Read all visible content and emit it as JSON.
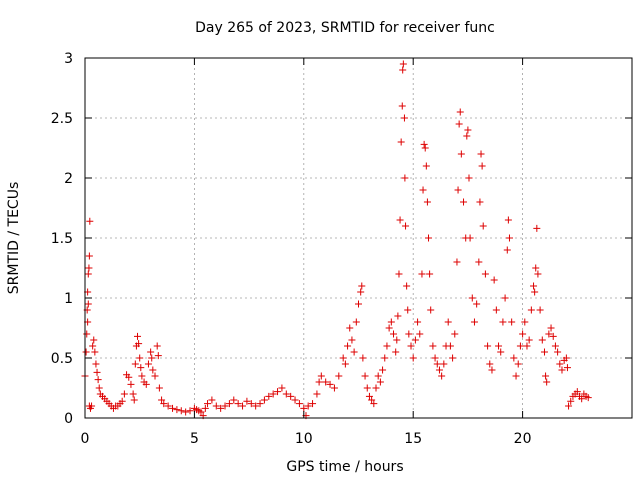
{
  "chart_data": {
    "type": "scatter",
    "title": "Day 265 of 2023, SRMTID for receiver func",
    "xlabel": "GPS time / hours",
    "ylabel": "SRMTID / TECUs",
    "xlim": [
      0,
      25
    ],
    "ylim": [
      0,
      3
    ],
    "xticks": [
      0,
      5,
      10,
      15,
      20
    ],
    "xtick_labels": [
      "0",
      "5",
      "10",
      "15",
      "20"
    ],
    "yticks": [
      0,
      0.5,
      1,
      1.5,
      2,
      2.5,
      3
    ],
    "ytick_labels": [
      "0",
      "0.5",
      "1",
      "1.5",
      "2",
      "2.5",
      "3"
    ],
    "grid": true,
    "marker": "+",
    "series": [
      {
        "name": "SRMTID",
        "color": "#dd0000",
        "points": [
          [
            0.0,
            0.35
          ],
          [
            0.05,
            0.55
          ],
          [
            0.08,
            0.7
          ],
          [
            0.1,
            0.9
          ],
          [
            0.12,
            1.05
          ],
          [
            0.15,
            1.2
          ],
          [
            0.18,
            1.25
          ],
          [
            0.2,
            1.35
          ],
          [
            0.22,
            1.64
          ],
          [
            0.15,
            0.95
          ],
          [
            0.12,
            0.8
          ],
          [
            0.2,
            0.1
          ],
          [
            0.25,
            0.08
          ],
          [
            0.3,
            0.1
          ],
          [
            0.35,
            0.6
          ],
          [
            0.4,
            0.65
          ],
          [
            0.45,
            0.55
          ],
          [
            0.5,
            0.45
          ],
          [
            0.55,
            0.38
          ],
          [
            0.6,
            0.32
          ],
          [
            0.65,
            0.25
          ],
          [
            0.7,
            0.2
          ],
          [
            0.8,
            0.18
          ],
          [
            0.9,
            0.16
          ],
          [
            1.0,
            0.14
          ],
          [
            1.1,
            0.12
          ],
          [
            1.2,
            0.1
          ],
          [
            1.3,
            0.08
          ],
          [
            1.4,
            0.1
          ],
          [
            1.5,
            0.1
          ],
          [
            1.6,
            0.12
          ],
          [
            1.7,
            0.14
          ],
          [
            1.8,
            0.2
          ],
          [
            1.9,
            0.36
          ],
          [
            2.0,
            0.34
          ],
          [
            2.1,
            0.28
          ],
          [
            2.2,
            0.2
          ],
          [
            2.25,
            0.15
          ],
          [
            2.3,
            0.45
          ],
          [
            2.35,
            0.6
          ],
          [
            2.4,
            0.68
          ],
          [
            2.45,
            0.62
          ],
          [
            2.5,
            0.5
          ],
          [
            2.55,
            0.42
          ],
          [
            2.6,
            0.35
          ],
          [
            2.7,
            0.3
          ],
          [
            2.8,
            0.28
          ],
          [
            2.9,
            0.45
          ],
          [
            3.0,
            0.55
          ],
          [
            3.05,
            0.5
          ],
          [
            3.1,
            0.4
          ],
          [
            3.2,
            0.35
          ],
          [
            3.3,
            0.6
          ],
          [
            3.35,
            0.52
          ],
          [
            3.4,
            0.25
          ],
          [
            3.5,
            0.15
          ],
          [
            3.6,
            0.12
          ],
          [
            3.8,
            0.1
          ],
          [
            4.0,
            0.08
          ],
          [
            4.2,
            0.07
          ],
          [
            4.4,
            0.06
          ],
          [
            4.6,
            0.05
          ],
          [
            4.8,
            0.06
          ],
          [
            5.0,
            0.08
          ],
          [
            5.1,
            0.07
          ],
          [
            5.2,
            0.06
          ],
          [
            5.3,
            0.05
          ],
          [
            5.4,
            0.02
          ],
          [
            5.5,
            0.08
          ],
          [
            5.6,
            0.12
          ],
          [
            5.8,
            0.15
          ],
          [
            6.0,
            0.1
          ],
          [
            6.2,
            0.08
          ],
          [
            6.4,
            0.1
          ],
          [
            6.6,
            0.12
          ],
          [
            6.8,
            0.15
          ],
          [
            7.0,
            0.12
          ],
          [
            7.2,
            0.1
          ],
          [
            7.4,
            0.14
          ],
          [
            7.6,
            0.12
          ],
          [
            7.8,
            0.1
          ],
          [
            8.0,
            0.12
          ],
          [
            8.2,
            0.15
          ],
          [
            8.4,
            0.18
          ],
          [
            8.6,
            0.2
          ],
          [
            8.8,
            0.22
          ],
          [
            9.0,
            0.25
          ],
          [
            9.2,
            0.2
          ],
          [
            9.4,
            0.18
          ],
          [
            9.6,
            0.15
          ],
          [
            9.8,
            0.12
          ],
          [
            10.0,
            0.08
          ],
          [
            10.1,
            0.02
          ],
          [
            10.2,
            0.1
          ],
          [
            10.4,
            0.12
          ],
          [
            10.6,
            0.2
          ],
          [
            10.7,
            0.3
          ],
          [
            10.8,
            0.35
          ],
          [
            11.0,
            0.3
          ],
          [
            11.2,
            0.28
          ],
          [
            11.4,
            0.25
          ],
          [
            11.6,
            0.35
          ],
          [
            11.8,
            0.5
          ],
          [
            11.9,
            0.45
          ],
          [
            12.0,
            0.6
          ],
          [
            12.1,
            0.75
          ],
          [
            12.2,
            0.65
          ],
          [
            12.3,
            0.55
          ],
          [
            12.4,
            0.8
          ],
          [
            12.5,
            0.95
          ],
          [
            12.6,
            1.05
          ],
          [
            12.65,
            1.1
          ],
          [
            12.7,
            0.5
          ],
          [
            12.8,
            0.35
          ],
          [
            12.9,
            0.25
          ],
          [
            13.0,
            0.18
          ],
          [
            13.1,
            0.15
          ],
          [
            13.2,
            0.12
          ],
          [
            13.3,
            0.25
          ],
          [
            13.4,
            0.35
          ],
          [
            13.5,
            0.3
          ],
          [
            13.6,
            0.4
          ],
          [
            13.7,
            0.5
          ],
          [
            13.8,
            0.6
          ],
          [
            13.9,
            0.75
          ],
          [
            14.0,
            0.8
          ],
          [
            14.1,
            0.7
          ],
          [
            14.2,
            0.55
          ],
          [
            14.25,
            0.65
          ],
          [
            14.3,
            0.85
          ],
          [
            14.35,
            1.2
          ],
          [
            14.4,
            1.65
          ],
          [
            14.45,
            2.3
          ],
          [
            14.5,
            2.6
          ],
          [
            14.52,
            2.9
          ],
          [
            14.55,
            2.95
          ],
          [
            14.6,
            2.5
          ],
          [
            14.62,
            2.0
          ],
          [
            14.65,
            1.6
          ],
          [
            14.7,
            1.1
          ],
          [
            14.75,
            0.9
          ],
          [
            14.8,
            0.7
          ],
          [
            14.9,
            0.6
          ],
          [
            15.0,
            0.5
          ],
          [
            15.1,
            0.65
          ],
          [
            15.2,
            0.8
          ],
          [
            15.3,
            0.7
          ],
          [
            15.4,
            1.2
          ],
          [
            15.45,
            1.9
          ],
          [
            15.5,
            2.28
          ],
          [
            15.55,
            2.25
          ],
          [
            15.6,
            2.1
          ],
          [
            15.65,
            1.8
          ],
          [
            15.7,
            1.5
          ],
          [
            15.75,
            1.2
          ],
          [
            15.8,
            0.9
          ],
          [
            15.9,
            0.6
          ],
          [
            16.0,
            0.5
          ],
          [
            16.1,
            0.45
          ],
          [
            16.2,
            0.4
          ],
          [
            16.3,
            0.35
          ],
          [
            16.4,
            0.45
          ],
          [
            16.5,
            0.6
          ],
          [
            16.6,
            0.8
          ],
          [
            16.7,
            0.6
          ],
          [
            16.8,
            0.5
          ],
          [
            16.9,
            0.7
          ],
          [
            17.0,
            1.3
          ],
          [
            17.05,
            1.9
          ],
          [
            17.1,
            2.45
          ],
          [
            17.15,
            2.55
          ],
          [
            17.2,
            2.2
          ],
          [
            17.3,
            1.8
          ],
          [
            17.4,
            1.5
          ],
          [
            17.45,
            2.35
          ],
          [
            17.5,
            2.4
          ],
          [
            17.55,
            2.0
          ],
          [
            17.6,
            1.5
          ],
          [
            17.7,
            1.0
          ],
          [
            17.8,
            0.8
          ],
          [
            17.9,
            0.95
          ],
          [
            18.0,
            1.3
          ],
          [
            18.05,
            1.8
          ],
          [
            18.1,
            2.2
          ],
          [
            18.15,
            2.1
          ],
          [
            18.2,
            1.6
          ],
          [
            18.3,
            1.2
          ],
          [
            18.4,
            0.6
          ],
          [
            18.5,
            0.45
          ],
          [
            18.6,
            0.4
          ],
          [
            18.7,
            1.15
          ],
          [
            18.8,
            0.9
          ],
          [
            18.9,
            0.6
          ],
          [
            19.0,
            0.55
          ],
          [
            19.1,
            0.8
          ],
          [
            19.2,
            1.0
          ],
          [
            19.3,
            1.4
          ],
          [
            19.35,
            1.65
          ],
          [
            19.4,
            1.5
          ],
          [
            19.5,
            0.8
          ],
          [
            19.6,
            0.5
          ],
          [
            19.7,
            0.35
          ],
          [
            19.8,
            0.45
          ],
          [
            19.9,
            0.6
          ],
          [
            20.0,
            0.7
          ],
          [
            20.1,
            0.8
          ],
          [
            20.2,
            0.6
          ],
          [
            20.3,
            0.65
          ],
          [
            20.4,
            0.9
          ],
          [
            20.5,
            1.1
          ],
          [
            20.55,
            1.05
          ],
          [
            20.6,
            1.25
          ],
          [
            20.65,
            1.58
          ],
          [
            20.7,
            1.2
          ],
          [
            20.8,
            0.9
          ],
          [
            20.9,
            0.65
          ],
          [
            21.0,
            0.55
          ],
          [
            21.05,
            0.35
          ],
          [
            21.1,
            0.3
          ],
          [
            21.2,
            0.7
          ],
          [
            21.3,
            0.75
          ],
          [
            21.4,
            0.68
          ],
          [
            21.5,
            0.6
          ],
          [
            21.6,
            0.55
          ],
          [
            21.7,
            0.45
          ],
          [
            21.8,
            0.4
          ],
          [
            21.9,
            0.48
          ],
          [
            22.0,
            0.5
          ],
          [
            22.05,
            0.42
          ],
          [
            22.1,
            0.1
          ],
          [
            22.2,
            0.14
          ],
          [
            22.3,
            0.18
          ],
          [
            22.4,
            0.2
          ],
          [
            22.5,
            0.22
          ],
          [
            22.6,
            0.18
          ],
          [
            22.7,
            0.16
          ],
          [
            22.8,
            0.2
          ],
          [
            22.9,
            0.18
          ],
          [
            23.0,
            0.17
          ]
        ]
      }
    ]
  }
}
